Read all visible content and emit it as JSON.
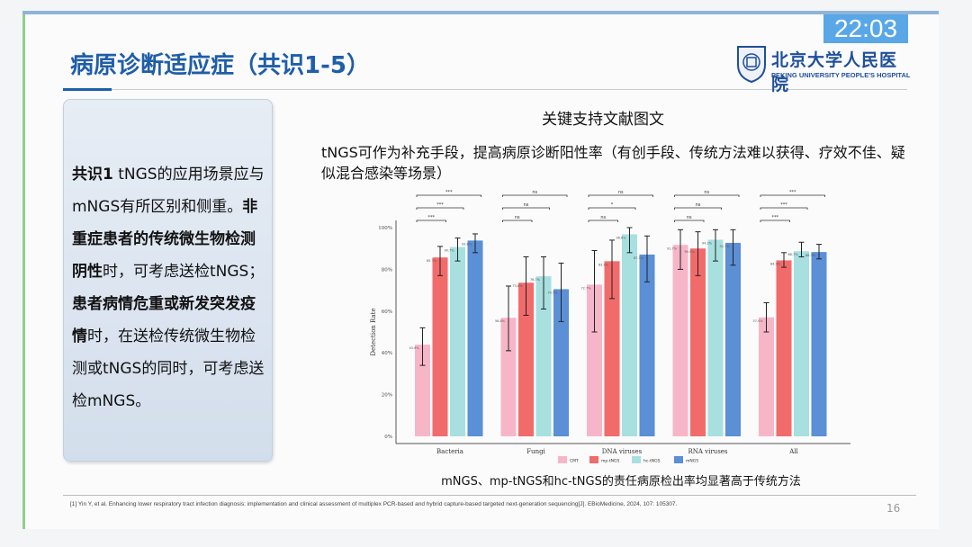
{
  "overlay": {
    "clock": "22:03"
  },
  "slide": {
    "title": "病原诊断适应症（共识1-5）",
    "logo": {
      "cn": "北京大学人民医院",
      "en": "PEKING UNIVERSITY PEOPLE'S HOSPITAL"
    },
    "consensus": {
      "label": "共识1",
      "p1": " tNGS的应用场景应与mNGS有所区别和侧重。",
      "b1": "非重症患者的传统微生物检测阴性",
      "p2": "时，可考虑送检tNGS；",
      "b2": "患者病情危重或新发突发疫情",
      "p3": "时，在送检传统微生物检测或tNGS的同时，可考虑送检mNGS。"
    },
    "ref_title": "关键支持文献图文",
    "summary": "tNGS可作为补充手段，提高病原诊断阳性率（有创手段、传统方法难以获得、疗效不佳、疑似混合感染等场景）",
    "caption": "mNGS、mp-tNGS和hc-tNGS的责任病原检出率均显著高于传统方法",
    "footnote": "[1] Yin Y, et al. Enhancing lower respiratory tract infection diagnosis: implementation and clinical assessment of multiplex PCR-based and hybrid capture-based targeted next-generation sequencing[J]. EBioMedicine, 2024, 107: 105307.",
    "page_number": "16"
  },
  "chart_data": {
    "type": "bar",
    "ylabel": "Detection Rate",
    "ylim": [
      0,
      100
    ],
    "yticks": [
      "0%",
      "20%",
      "40%",
      "60%",
      "80%",
      "100%"
    ],
    "categories": [
      "Bacteria",
      "Fungi",
      "DNA viruses",
      "RNA viruses",
      "All"
    ],
    "legend_position": "bottom",
    "series": [
      {
        "name": "CMT",
        "color": "#f7b6c8",
        "values": [
          43.9,
          56.8,
          72.7,
          91.7,
          57.0
        ],
        "ci": [
          [
            34,
            52
          ],
          [
            41,
            72
          ],
          [
            50,
            89
          ],
          [
            80,
            99
          ],
          [
            50,
            64
          ]
        ]
      },
      {
        "name": "mp-tNGS",
        "color": "#f26b6b",
        "values": [
          85.7,
          73.6,
          83.9,
          90.0,
          84.3
        ],
        "ci": [
          [
            77,
            91
          ],
          [
            58,
            86
          ],
          [
            66,
            94
          ],
          [
            77,
            98
          ],
          [
            81,
            88
          ]
        ]
      },
      {
        "name": "hc-tNGS",
        "color": "#a8e0e0",
        "values": [
          90.7,
          76.7,
          96.8,
          94.2,
          88.7
        ],
        "ci": [
          [
            84,
            95
          ],
          [
            61,
            86
          ],
          [
            88,
            100
          ],
          [
            84,
            99
          ],
          [
            86,
            93
          ]
        ]
      },
      {
        "name": "mNGS",
        "color": "#5b8fd6",
        "values": [
          93.8,
          70.5,
          87.1,
          92.7,
          88.3
        ],
        "ci": [
          [
            88,
            97
          ],
          [
            55,
            83
          ],
          [
            74,
            96
          ],
          [
            82,
            99
          ],
          [
            85,
            92
          ]
        ]
      }
    ],
    "value_labels": [
      [
        "43.9%",
        "85.7%",
        "90.7%",
        "93.8%"
      ],
      [
        "56.8%",
        "73.6%",
        "76.7%",
        "70.5%"
      ],
      [
        "72.7%",
        "83.9%",
        "96.8%",
        "87.1%"
      ],
      [
        "91.7%",
        "90.0%",
        "94.2%",
        "92.7%"
      ],
      [
        "57.0%",
        "84.3%",
        "88.7%",
        "88.3%"
      ]
    ],
    "significance": [
      [
        "***",
        "***",
        "***"
      ],
      [
        "ns",
        "ns",
        "ns"
      ],
      [
        "ns",
        "*",
        "ns"
      ],
      [
        "ns",
        "ns",
        "ns"
      ],
      [
        "***",
        "***",
        "***"
      ]
    ]
  }
}
